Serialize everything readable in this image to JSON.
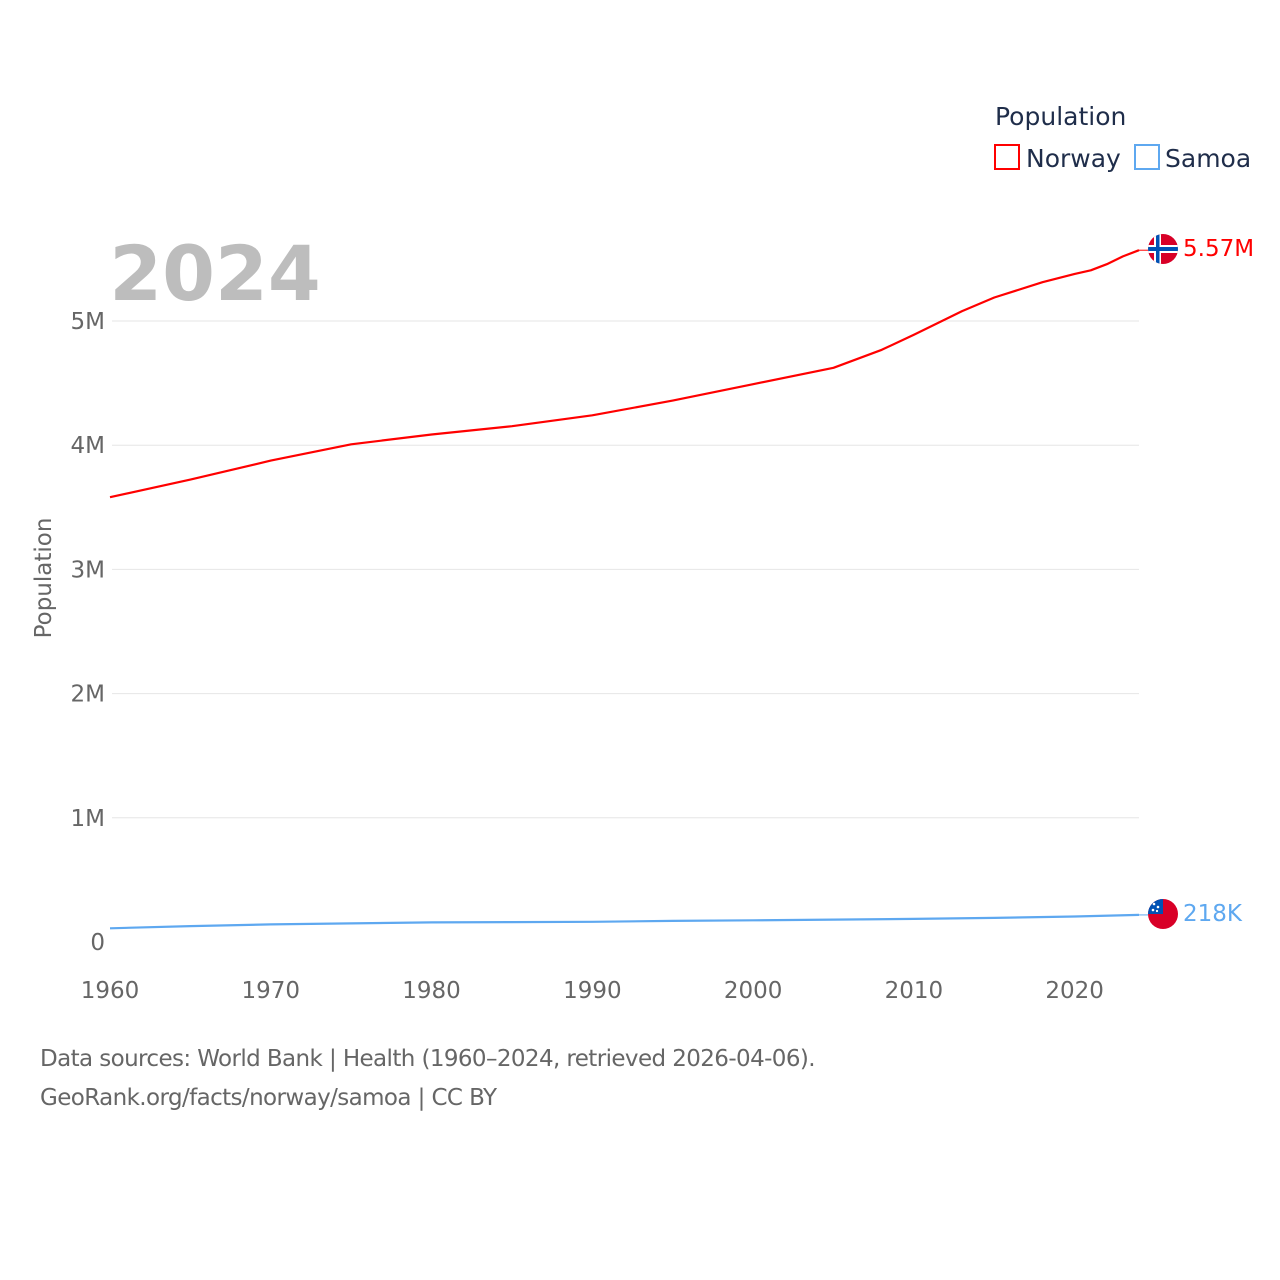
{
  "chart_data": {
    "type": "line",
    "title": "Population",
    "ylabel": "Population",
    "xlabel": "",
    "year_label": "2024",
    "xlim": [
      1960,
      2024
    ],
    "ylim": [
      0,
      5800000
    ],
    "x_ticks": [
      "1960",
      "1970",
      "1980",
      "1990",
      "2000",
      "2010",
      "2020"
    ],
    "y_ticks": [
      {
        "v": 0,
        "label": "0"
      },
      {
        "v": 1000000,
        "label": "1M"
      },
      {
        "v": 2000000,
        "label": "2M"
      },
      {
        "v": 3000000,
        "label": "3M"
      },
      {
        "v": 4000000,
        "label": "4M"
      },
      {
        "v": 5000000,
        "label": "5M"
      }
    ],
    "grid": true,
    "legend_position": "top-right",
    "series": [
      {
        "name": "Norway",
        "color": "#ff0000",
        "end_label": "5.57M",
        "flag": "norway-flag",
        "x": [
          1960,
          1965,
          1970,
          1975,
          1980,
          1985,
          1990,
          1995,
          2000,
          2005,
          2008,
          2010,
          2013,
          2015,
          2018,
          2020,
          2021,
          2022,
          2023,
          2024
        ],
        "values": [
          3581000,
          3723000,
          3876000,
          4007000,
          4086000,
          4153000,
          4241000,
          4359000,
          4491000,
          4623000,
          4768000,
          4889000,
          5080000,
          5189000,
          5312000,
          5379000,
          5408000,
          5457000,
          5520000,
          5570000
        ]
      },
      {
        "name": "Samoa",
        "color": "#5ea8f0",
        "end_label": "218K",
        "flag": "samoa-flag",
        "x": [
          1960,
          1965,
          1970,
          1975,
          1980,
          1985,
          1990,
          1995,
          2000,
          2005,
          2010,
          2015,
          2020,
          2024
        ],
        "values": [
          110000,
          128000,
          142000,
          150000,
          158000,
          160000,
          163000,
          170000,
          175000,
          180000,
          186000,
          194000,
          205000,
          218000
        ]
      }
    ]
  },
  "footer": {
    "sources": "Data sources: World Bank | Health (1960–2024, retrieved 2026-04-06).",
    "credit": "GeoRank.org/facts/norway/samoa | CC BY"
  }
}
